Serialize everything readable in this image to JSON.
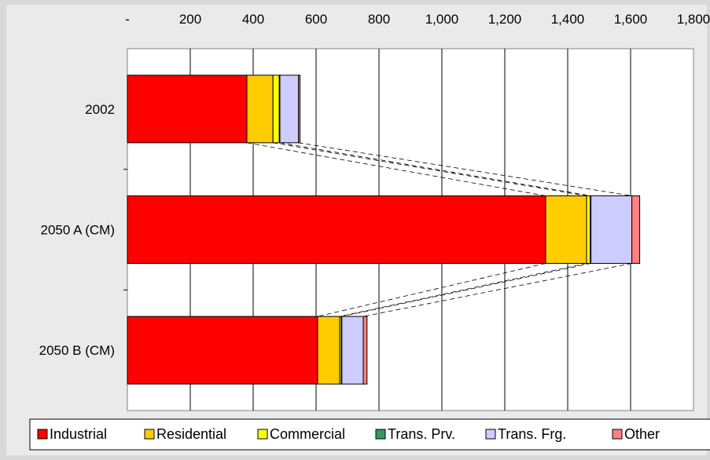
{
  "chart_data": {
    "type": "bar",
    "orientation": "horizontal",
    "stacked": true,
    "categories": [
      "2002",
      "2050 A (CM)",
      "2050 B (CM)"
    ],
    "x_axis_position": "top",
    "xlim": [
      0,
      1800
    ],
    "xticks": [
      0,
      200,
      400,
      600,
      800,
      1000,
      1200,
      1400,
      1600,
      1800
    ],
    "xtick_labels": [
      "-",
      "200",
      "400",
      "600",
      "800",
      "1,000",
      "1,200",
      "1,400",
      "1,600",
      "1,800"
    ],
    "grid": "vertical",
    "legend_position": "bottom",
    "title": "",
    "xlabel": "",
    "ylabel": "",
    "series": [
      {
        "name": "Industrial",
        "color": "#ff0000",
        "values": [
          380,
          1330,
          605
        ]
      },
      {
        "name": "Residential",
        "color": "#ffcc00",
        "values": [
          83,
          130,
          70
        ]
      },
      {
        "name": "Commercial",
        "color": "#ffff00",
        "values": [
          20,
          12,
          5
        ]
      },
      {
        "name": "Trans. Prv.",
        "color": "#339966",
        "values": [
          2,
          2,
          2
        ]
      },
      {
        "name": "Trans. Frg.",
        "color": "#ccccff",
        "values": [
          59,
          130,
          68
        ]
      },
      {
        "name": "Other",
        "color": "#ff8080",
        "values": [
          5,
          25,
          12
        ]
      }
    ],
    "connector_lines": "dashed"
  }
}
